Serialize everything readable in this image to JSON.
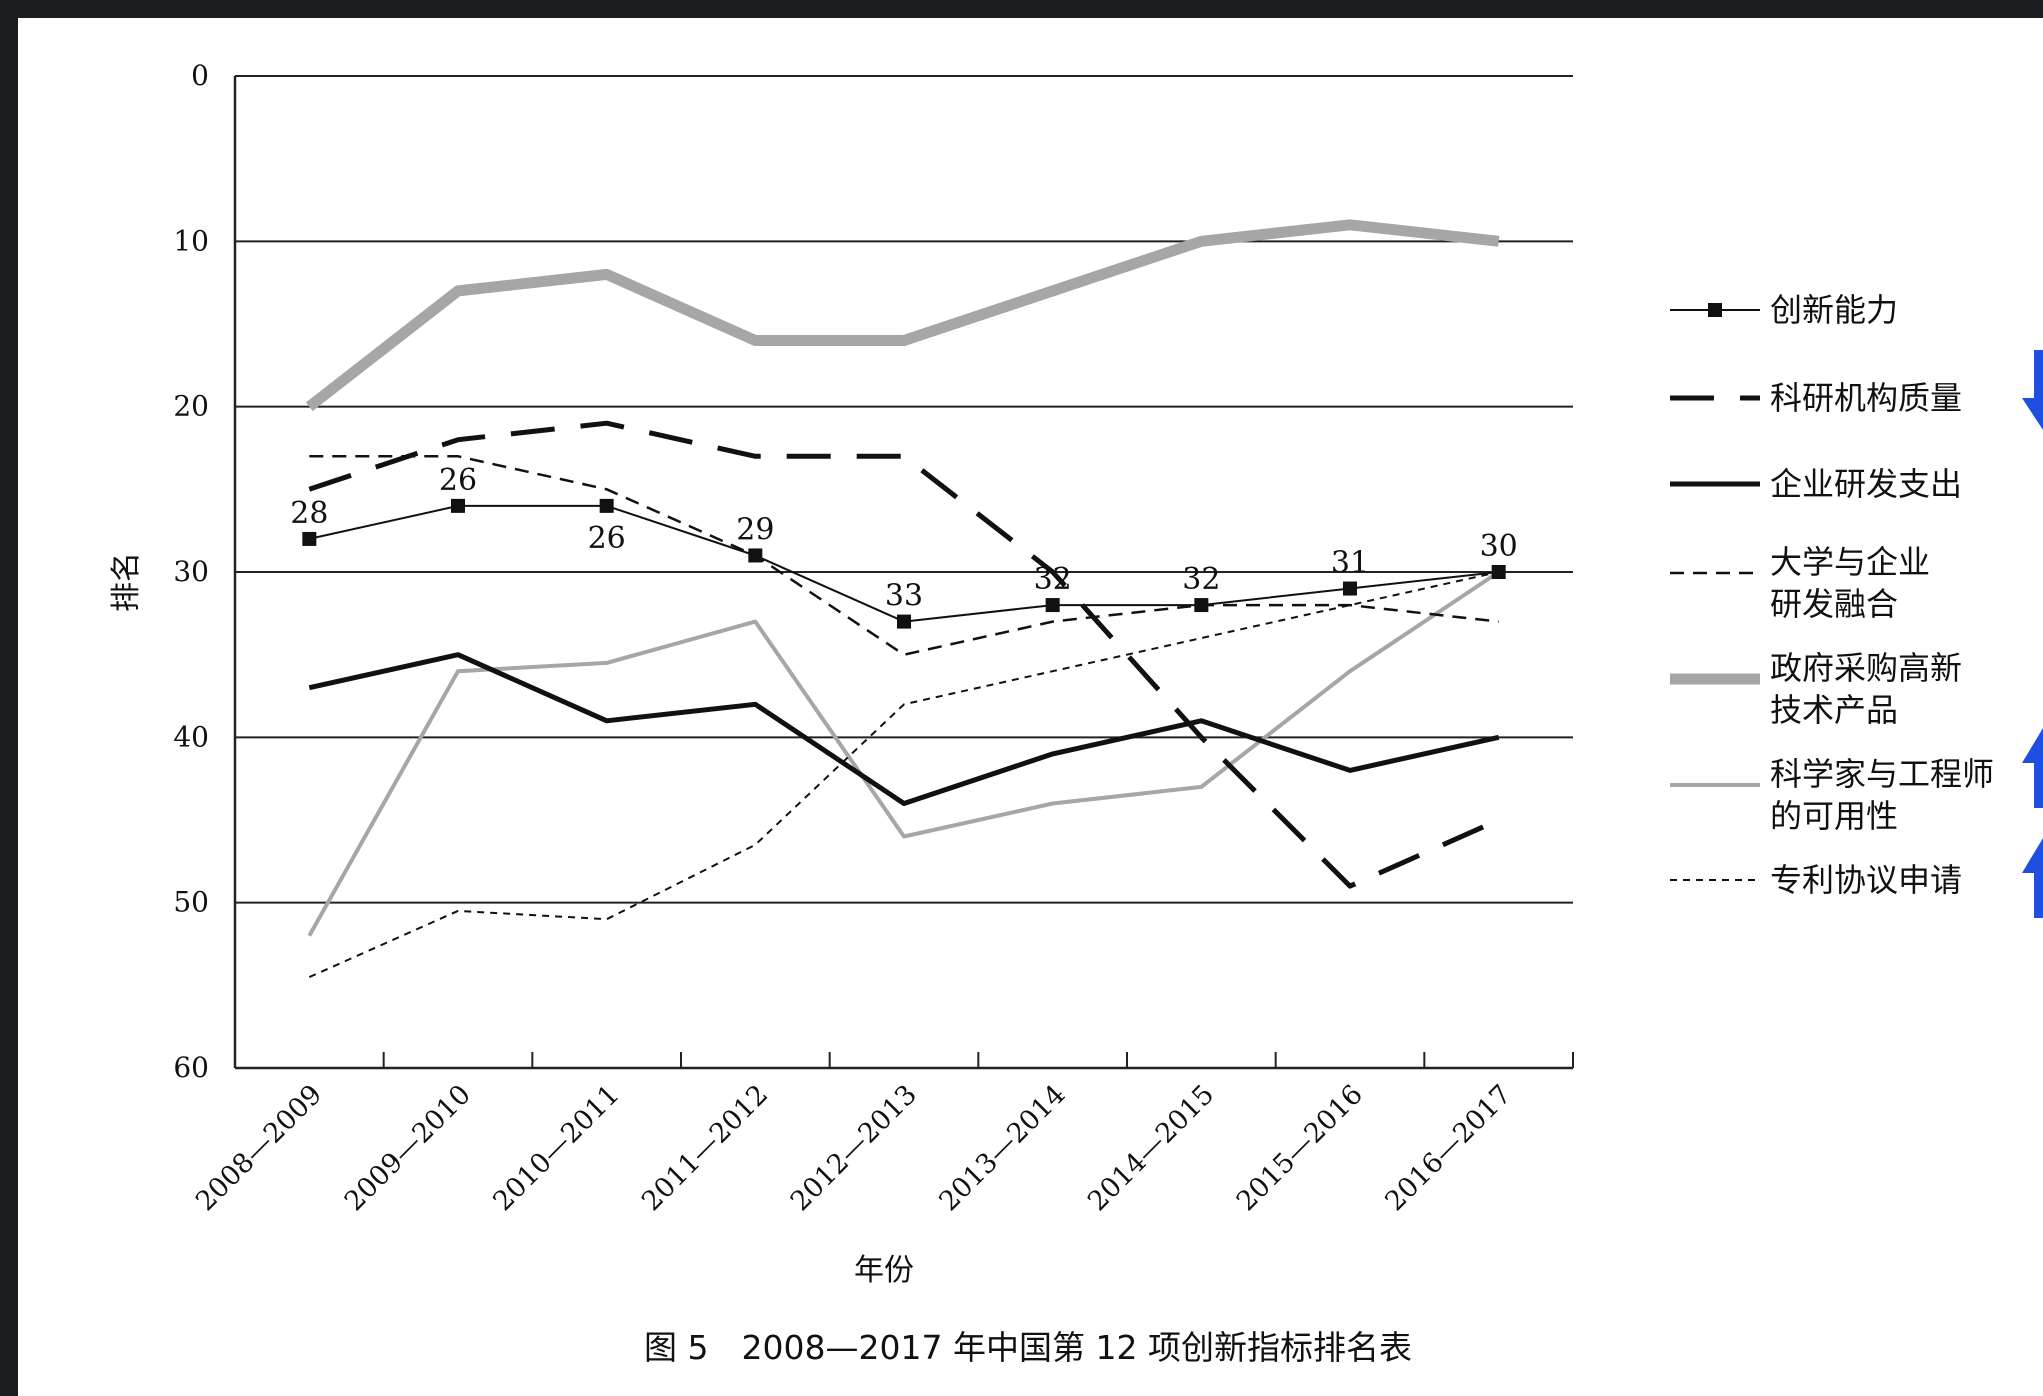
{
  "chart_data": {
    "type": "line",
    "caption": "图 5　2008—2017 年中国第 12 项创新指标排名表",
    "xlabel": "年份",
    "ylabel": "排名",
    "ylim": [
      0,
      60
    ],
    "y_inverted": true,
    "yticks": [
      "0",
      "10",
      "20",
      "30",
      "40",
      "50",
      "60"
    ],
    "grid": "horizontal",
    "legend_position": "right",
    "categories": [
      "2008—2009",
      "2009—2010",
      "2010—2011",
      "2011—2012",
      "2012—2013",
      "2013—2014",
      "2014—2015",
      "2015—2016",
      "2016—2017"
    ],
    "series": [
      {
        "name": "创新能力",
        "style": "thin-solid-square-markers",
        "color": "#111111",
        "values": [
          28,
          26,
          26,
          29,
          33,
          32,
          32,
          31,
          30
        ],
        "data_labels": [
          "28",
          "26",
          "26",
          "29",
          "33",
          "32",
          "32",
          "31",
          "30"
        ]
      },
      {
        "name": "科研机构质量",
        "style": "long-dash",
        "color": "#111111",
        "values": [
          25,
          22,
          21,
          23,
          23,
          30,
          40,
          49,
          45
        ]
      },
      {
        "name": "企业研发支出",
        "style": "thick-solid",
        "color": "#111111",
        "values": [
          37,
          35,
          39,
          38,
          44,
          41,
          39,
          42,
          40
        ]
      },
      {
        "name": "大学与企业\n研发融合",
        "style": "short-dash",
        "color": "#111111",
        "values": [
          23,
          23,
          25,
          29,
          35,
          33,
          32,
          32,
          33
        ]
      },
      {
        "name": "政府采购高新\n技术产品",
        "style": "thick-gray",
        "color": "#a6a6a6",
        "values": [
          20,
          13,
          12,
          16,
          16,
          13,
          10,
          9,
          10
        ]
      },
      {
        "name": "科学家与工程师\n的可用性",
        "style": "thin-gray",
        "color": "#a6a6a6",
        "values": [
          52,
          36,
          35.5,
          33,
          46,
          44,
          43,
          36,
          30
        ]
      },
      {
        "name": "专利协议申请",
        "style": "fine-dash",
        "color": "#111111",
        "values": [
          54.5,
          50.5,
          51,
          46.5,
          38,
          36,
          34,
          32,
          30
        ]
      }
    ]
  },
  "colors": {
    "background": "#1c1d20",
    "panel": "#ffffff",
    "ink": "#111111",
    "gray_series": "#a6a6a6",
    "arrow": "#1f4fe0"
  },
  "annotations": {
    "arrow_icons": [
      "arrow-down-icon",
      "arrow-up-icon",
      "arrow-up-icon"
    ]
  }
}
